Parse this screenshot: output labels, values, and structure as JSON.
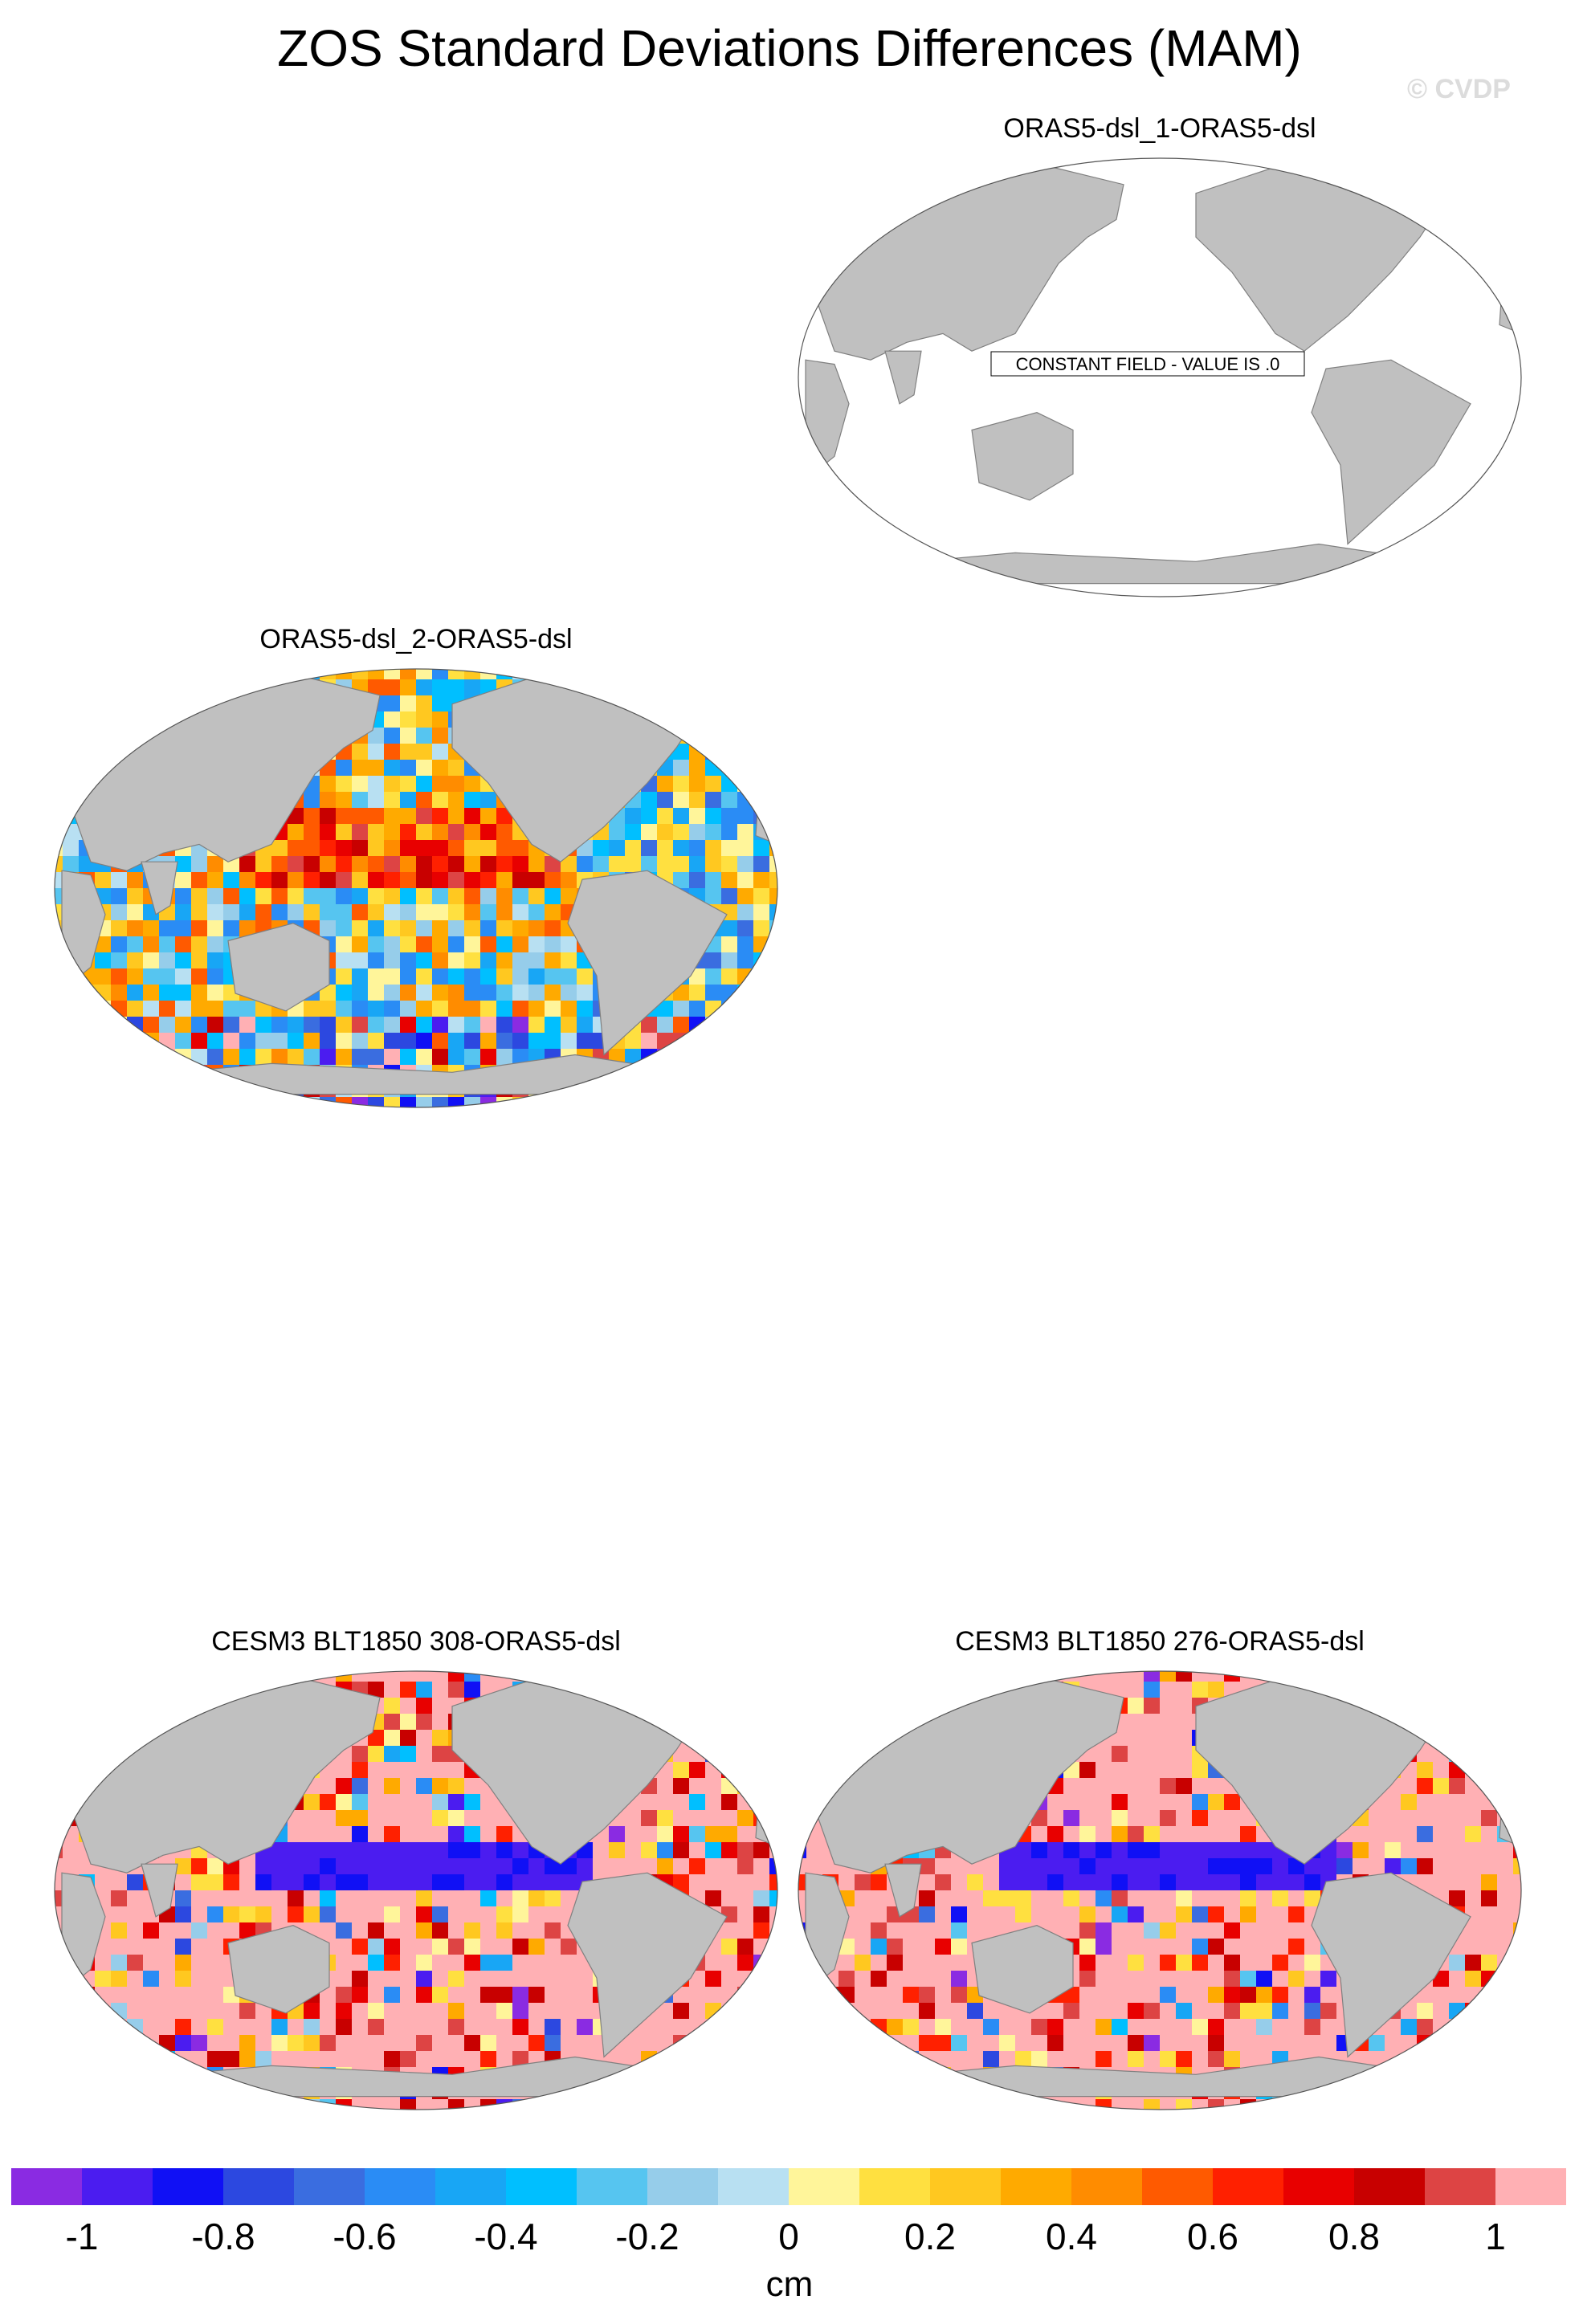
{
  "title": "ZOS Standard Deviations Differences (MAM)",
  "watermark": "© CVDP",
  "panels": [
    {
      "title": "ORAS5-dsl_1-ORAS5-dsl",
      "note": "CONSTANT FIELD - VALUE IS .0",
      "style": "constant"
    },
    {
      "title": "ORAS5-dsl_2-ORAS5-dsl",
      "style": "mixed"
    },
    {
      "title": "CESM3 BLT1850 308-ORAS5-dsl",
      "style": "high"
    },
    {
      "title": "CESM3 BLT1850 276-ORAS5-dsl",
      "style": "high"
    }
  ],
  "colorbar": {
    "units": "cm",
    "labels": [
      "-1",
      "-0.8",
      "-0.6",
      "-0.4",
      "-0.2",
      "0",
      "0.2",
      "0.4",
      "0.6",
      "0.8",
      "1"
    ],
    "colors": [
      "#8a2be2",
      "#4b1cf0",
      "#1010f5",
      "#2c48e0",
      "#3a6de0",
      "#2a8cf5",
      "#18a6f5",
      "#00bfff",
      "#56c5f0",
      "#96cdea",
      "#b8e0f2",
      "#fff59a",
      "#ffe040",
      "#ffc820",
      "#ffaa00",
      "#ff8c00",
      "#ff5a00",
      "#ff2000",
      "#e80000",
      "#c80000",
      "#dd4444",
      "#ffb0b4"
    ]
  },
  "colors": {
    "land": "#c0c0c0",
    "coast": "#808080",
    "ocean_blank": "#ffffff"
  }
}
